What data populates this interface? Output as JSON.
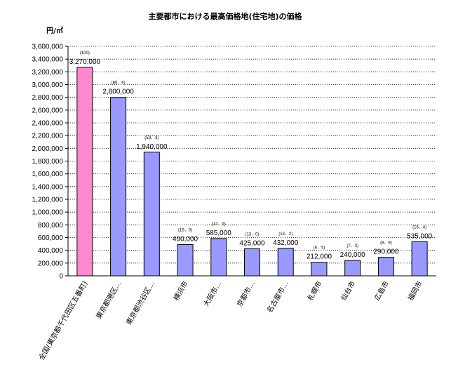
{
  "chart_data": {
    "type": "bar",
    "title": "主要都市における最高価格地(住宅地)の価格",
    "ylabel": "円/㎡",
    "ylim": [
      0,
      3600000
    ],
    "yticks": [
      0,
      200000,
      400000,
      600000,
      800000,
      1000000,
      1200000,
      1400000,
      1600000,
      1800000,
      2000000,
      2200000,
      2400000,
      2600000,
      2800000,
      3000000,
      3200000,
      3400000,
      3600000
    ],
    "ytick_labels": [
      "0",
      "200,000",
      "400,000",
      "600,000",
      "800,000",
      "1,000,000",
      "1,200,000",
      "1,400,000",
      "1,600,000",
      "1,800,000",
      "2,000,000",
      "2,200,000",
      "2,400,000",
      "2,600,000",
      "2,800,000",
      "3,000,000",
      "3,200,000",
      "3,400,000",
      "3,600,000"
    ],
    "grid": true,
    "categories": [
      "全国(東京都千代田区五番町)",
      "東京都港区…",
      "東京都渋谷区…",
      "横浜市",
      "大阪市…",
      "京都市…",
      "名古屋市…",
      "札幌市",
      "仙台市",
      "広島市",
      "福岡市"
    ],
    "values": [
      3270000,
      2800000,
      1940000,
      490000,
      585000,
      425000,
      432000,
      212000,
      240000,
      290000,
      535000
    ],
    "value_labels": [
      "3,270,000",
      "2,800,000",
      "1,940,000",
      "490,000",
      "585,000",
      "425,000",
      "432,000",
      "212,000",
      "240,000",
      "290,000",
      "535,000"
    ],
    "ratio_labels": [
      "(100)",
      "(85．6)",
      "(59．3)",
      "(15．0)",
      "(17．9)",
      "(13．0)",
      "(13．2)",
      "(6．5)",
      "(7．3)",
      "(8．9)",
      "(16．4)"
    ],
    "colors": {
      "highlight_bar": "#ff88cc",
      "bar": "#9999ff"
    }
  }
}
